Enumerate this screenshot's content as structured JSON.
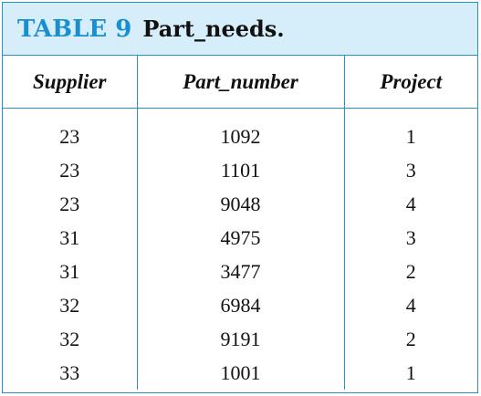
{
  "caption": {
    "label": "TABLE 9",
    "title": "Part_needs."
  },
  "columns": [
    "Supplier",
    "Part_number",
    "Project"
  ],
  "rows": [
    [
      "23",
      "1092",
      "1"
    ],
    [
      "23",
      "1101",
      "3"
    ],
    [
      "23",
      "9048",
      "4"
    ],
    [
      "31",
      "4975",
      "3"
    ],
    [
      "31",
      "3477",
      "2"
    ],
    [
      "32",
      "6984",
      "4"
    ],
    [
      "32",
      "9191",
      "2"
    ],
    [
      "33",
      "1001",
      "1"
    ]
  ],
  "colors": {
    "accent": "#1a8fd0",
    "border": "#2b8fc6",
    "caption_bg": "#d6eef9"
  }
}
